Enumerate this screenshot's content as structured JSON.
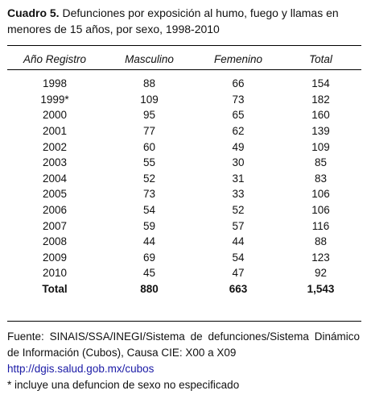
{
  "title_label": "Cuadro 5.",
  "title": "Defunciones por exposición al humo, fuego y llamas en menores de 15 años, por sexo, 1998-2010",
  "table": {
    "header": [
      "Año Registro",
      "Masculino",
      "Femenino",
      "Total"
    ],
    "rows": [
      [
        "1998",
        "88",
        "66",
        "154"
      ],
      [
        "1999*",
        "109",
        "73",
        "182"
      ],
      [
        "2000",
        "95",
        "65",
        "160"
      ],
      [
        "2001",
        "77",
        "62",
        "139"
      ],
      [
        "2002",
        "60",
        "49",
        "109"
      ],
      [
        "2003",
        "55",
        "30",
        "85"
      ],
      [
        "2004",
        "52",
        "31",
        "83"
      ],
      [
        "2005",
        "73",
        "33",
        "106"
      ],
      [
        "2006",
        "54",
        "52",
        "106"
      ],
      [
        "2007",
        "59",
        "57",
        "116"
      ],
      [
        "2008",
        "44",
        "44",
        "88"
      ],
      [
        "2009",
        "69",
        "54",
        "123"
      ],
      [
        "2010",
        "45",
        "47",
        "92"
      ]
    ],
    "total": [
      "Total",
      "880",
      "663",
      "1,543"
    ]
  },
  "footer": {
    "source": "Fuente:  SINAIS/SSA/INEGI/Sistema de defunciones/Sistema Dinámico de Información (Cubos), Causa CIE: X00 a X09",
    "url": "http://dgis.salud.gob.mx/cubos",
    "note": "* incluye una defuncion de sexo no especificado"
  }
}
